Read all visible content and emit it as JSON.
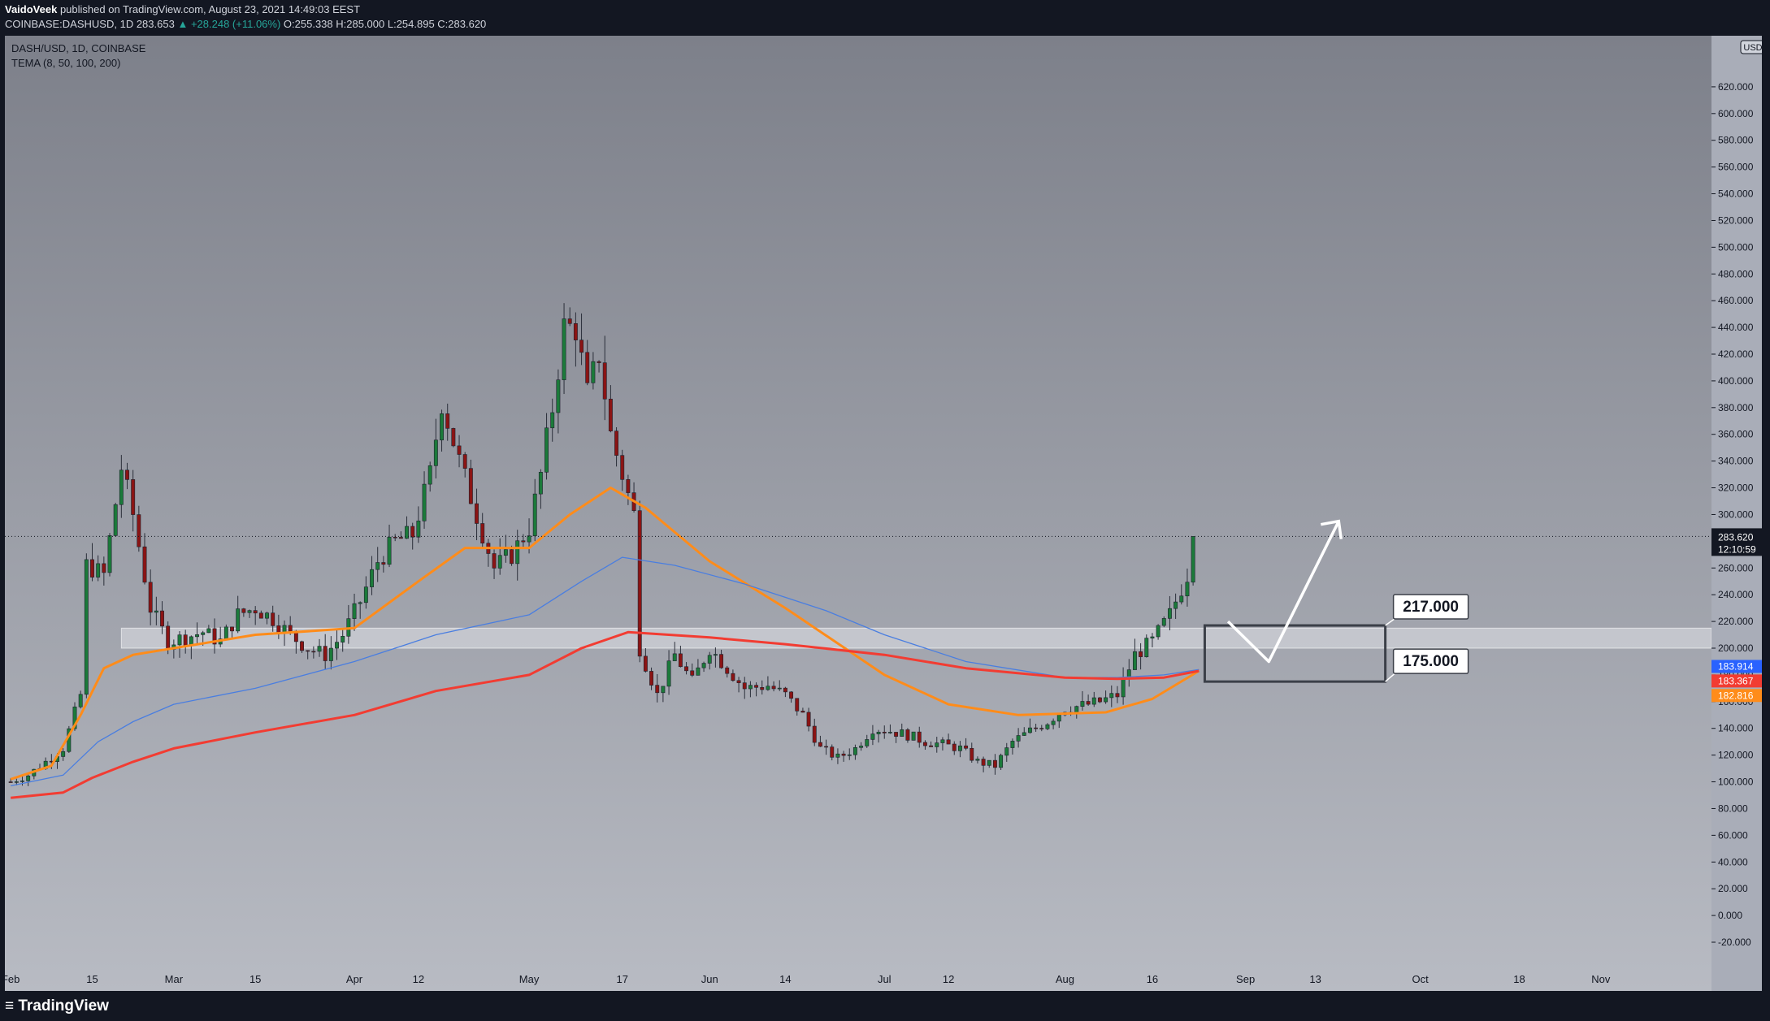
{
  "header": {
    "author": "VaidoVeek",
    "published": "published on TradingView.com, August 23, 2021 14:49:03 EEST",
    "symbol": "COINBASE:DASHUSD, 1D",
    "last": "283.653",
    "change": "+28.248 (+11.06%)",
    "ohlc": "O:255.338 H:285.000 L:254.895 C:283.620"
  },
  "legend": {
    "symbol": "DASH/USD, 1D, COINBASE",
    "indicator": "TEMA (8, 50, 100, 200)"
  },
  "footer": {
    "brand": "TradingView"
  },
  "colors": {
    "up": "#1b7a3a",
    "down": "#8b1414",
    "ma_orange": "#ff8c1a",
    "ma_red": "#f23c32",
    "ma_blue": "#4a7ee0",
    "accent_white": "#ffffff",
    "zone": "#e0e2e8"
  },
  "chart_data": {
    "type": "candlestick",
    "title": "DASH/USD, 1D, COINBASE",
    "ylim": [
      -20,
      640
    ],
    "y_ticks": [
      "-20.000",
      "0.000",
      "20.000",
      "40.000",
      "60.000",
      "80.000",
      "100.000",
      "120.000",
      "140.000",
      "160.000",
      "180.000",
      "200.000",
      "220.000",
      "240.000",
      "260.000",
      "280.000",
      "300.000",
      "320.000",
      "340.000",
      "360.000",
      "380.000",
      "400.000",
      "420.000",
      "440.000",
      "460.000",
      "480.000",
      "500.000",
      "520.000",
      "540.000",
      "560.000",
      "580.000",
      "600.000",
      "620.000"
    ],
    "x_ticks": [
      {
        "label": "Feb",
        "date": "2021-02-01"
      },
      {
        "label": "15",
        "date": "2021-02-15"
      },
      {
        "label": "Mar",
        "date": "2021-03-01"
      },
      {
        "label": "15",
        "date": "2021-03-15"
      },
      {
        "label": "Apr",
        "date": "2021-04-01"
      },
      {
        "label": "12",
        "date": "2021-04-12"
      },
      {
        "label": "May",
        "date": "2021-05-01"
      },
      {
        "label": "17",
        "date": "2021-05-17"
      },
      {
        "label": "Jun",
        "date": "2021-06-01"
      },
      {
        "label": "14",
        "date": "2021-06-14"
      },
      {
        "label": "Jul",
        "date": "2021-07-01"
      },
      {
        "label": "12",
        "date": "2021-07-12"
      },
      {
        "label": "Aug",
        "date": "2021-08-01"
      },
      {
        "label": "16",
        "date": "2021-08-16"
      },
      {
        "label": "Sep",
        "date": "2021-09-01"
      },
      {
        "label": "13",
        "date": "2021-09-13"
      },
      {
        "label": "Oct",
        "date": "2021-10-01"
      },
      {
        "label": "18",
        "date": "2021-10-18"
      },
      {
        "label": "Nov",
        "date": "2021-11-01"
      }
    ],
    "x_range": [
      "2021-01-31",
      "2021-11-20"
    ],
    "last_price": {
      "value": 283.62,
      "label": "283.620",
      "countdown": "12:10:59"
    },
    "ma_labels": [
      {
        "value": 183.914,
        "label": "183.914",
        "color": "#2962ff"
      },
      {
        "value": 183.367,
        "label": "183.367",
        "color": "#f23c32"
      },
      {
        "value": 182.816,
        "label": "182.816",
        "color": "#ff8c1a"
      }
    ],
    "currency_badge": "USD",
    "support_zone": {
      "from": 200,
      "to": 215,
      "start_date": "2021-02-20"
    },
    "target_box": {
      "top": 217,
      "bottom": 175,
      "start_date": "2021-08-25",
      "end_date": "2021-09-25",
      "top_label": "217.000",
      "bottom_label": "175.000"
    },
    "projection_path": [
      {
        "date": "2021-08-29",
        "value": 220
      },
      {
        "date": "2021-09-05",
        "value": 190
      },
      {
        "date": "2021-09-17",
        "value": 295
      }
    ],
    "anchors": [
      [
        "2021-02-01",
        100
      ],
      [
        "2021-02-04",
        105
      ],
      [
        "2021-02-07",
        115
      ],
      [
        "2021-02-10",
        125
      ],
      [
        "2021-02-13",
        165
      ],
      [
        "2021-02-14",
        262
      ],
      [
        "2021-02-17",
        255
      ],
      [
        "2021-02-20",
        335
      ],
      [
        "2021-02-22",
        300
      ],
      [
        "2021-02-25",
        230
      ],
      [
        "2021-02-28",
        205
      ],
      [
        "2021-03-03",
        208
      ],
      [
        "2021-03-06",
        212
      ],
      [
        "2021-03-09",
        205
      ],
      [
        "2021-03-12",
        225
      ],
      [
        "2021-03-15",
        230
      ],
      [
        "2021-03-18",
        222
      ],
      [
        "2021-03-21",
        210
      ],
      [
        "2021-03-24",
        200
      ],
      [
        "2021-03-27",
        195
      ],
      [
        "2021-03-30",
        210
      ],
      [
        "2021-04-02",
        235
      ],
      [
        "2021-04-05",
        265
      ],
      [
        "2021-04-08",
        280
      ],
      [
        "2021-04-11",
        285
      ],
      [
        "2021-04-14",
        330
      ],
      [
        "2021-04-16",
        385
      ],
      [
        "2021-04-19",
        340
      ],
      [
        "2021-04-22",
        300
      ],
      [
        "2021-04-25",
        260
      ],
      [
        "2021-04-28",
        270
      ],
      [
        "2021-05-01",
        290
      ],
      [
        "2021-05-03",
        330
      ],
      [
        "2021-05-05",
        380
      ],
      [
        "2021-05-07",
        440
      ],
      [
        "2021-05-09",
        440
      ],
      [
        "2021-05-11",
        390
      ],
      [
        "2021-05-13",
        420
      ],
      [
        "2021-05-15",
        360
      ],
      [
        "2021-05-17",
        330
      ],
      [
        "2021-05-19",
        300
      ],
      [
        "2021-05-20",
        200
      ],
      [
        "2021-05-23",
        165
      ],
      [
        "2021-05-26",
        195
      ],
      [
        "2021-05-29",
        175
      ],
      [
        "2021-06-01",
        200
      ],
      [
        "2021-06-04",
        185
      ],
      [
        "2021-06-07",
        170
      ],
      [
        "2021-06-11",
        172
      ],
      [
        "2021-06-14",
        165
      ],
      [
        "2021-06-17",
        150
      ],
      [
        "2021-06-20",
        125
      ],
      [
        "2021-06-23",
        118
      ],
      [
        "2021-06-26",
        125
      ],
      [
        "2021-06-29",
        140
      ],
      [
        "2021-07-02",
        138
      ],
      [
        "2021-07-05",
        135
      ],
      [
        "2021-07-08",
        130
      ],
      [
        "2021-07-11",
        128
      ],
      [
        "2021-07-14",
        125
      ],
      [
        "2021-07-17",
        115
      ],
      [
        "2021-07-20",
        112
      ],
      [
        "2021-07-23",
        130
      ],
      [
        "2021-07-26",
        138
      ],
      [
        "2021-07-29",
        145
      ],
      [
        "2021-08-01",
        155
      ],
      [
        "2021-08-04",
        157
      ],
      [
        "2021-08-07",
        160
      ],
      [
        "2021-08-10",
        165
      ],
      [
        "2021-08-13",
        195
      ],
      [
        "2021-08-16",
        205
      ],
      [
        "2021-08-19",
        225
      ],
      [
        "2021-08-21",
        245
      ],
      [
        "2021-08-22",
        255
      ],
      [
        "2021-08-23",
        283.62
      ]
    ],
    "series": [
      {
        "name": "TEMA 1",
        "color": "#ff8c1a",
        "points": [
          [
            "2021-02-01",
            102
          ],
          [
            "2021-02-08",
            112
          ],
          [
            "2021-02-13",
            150
          ],
          [
            "2021-02-17",
            185
          ],
          [
            "2021-02-22",
            195
          ],
          [
            "2021-03-01",
            200
          ],
          [
            "2021-03-15",
            210
          ],
          [
            "2021-04-01",
            215
          ],
          [
            "2021-04-12",
            250
          ],
          [
            "2021-04-20",
            275
          ],
          [
            "2021-05-01",
            275
          ],
          [
            "2021-05-08",
            300
          ],
          [
            "2021-05-15",
            320
          ],
          [
            "2021-05-21",
            305
          ],
          [
            "2021-06-01",
            265
          ],
          [
            "2021-06-14",
            230
          ],
          [
            "2021-07-01",
            180
          ],
          [
            "2021-07-12",
            158
          ],
          [
            "2021-07-24",
            150
          ],
          [
            "2021-08-08",
            152
          ],
          [
            "2021-08-16",
            162
          ],
          [
            "2021-08-24",
            183
          ]
        ]
      },
      {
        "name": "TEMA 2",
        "color": "#4a7ee0",
        "points": [
          [
            "2021-02-01",
            97
          ],
          [
            "2021-02-10",
            105
          ],
          [
            "2021-02-16",
            130
          ],
          [
            "2021-02-22",
            145
          ],
          [
            "2021-03-01",
            158
          ],
          [
            "2021-03-15",
            170
          ],
          [
            "2021-04-01",
            190
          ],
          [
            "2021-04-15",
            210
          ],
          [
            "2021-05-01",
            225
          ],
          [
            "2021-05-10",
            250
          ],
          [
            "2021-05-17",
            268
          ],
          [
            "2021-05-26",
            262
          ],
          [
            "2021-06-07",
            248
          ],
          [
            "2021-06-21",
            228
          ],
          [
            "2021-07-01",
            210
          ],
          [
            "2021-07-15",
            190
          ],
          [
            "2021-08-01",
            178
          ],
          [
            "2021-08-10",
            178
          ],
          [
            "2021-08-18",
            180
          ],
          [
            "2021-08-24",
            184
          ]
        ]
      },
      {
        "name": "TEMA 3",
        "color": "#f23c32",
        "points": [
          [
            "2021-02-01",
            88
          ],
          [
            "2021-02-10",
            92
          ],
          [
            "2021-02-15",
            103
          ],
          [
            "2021-02-22",
            115
          ],
          [
            "2021-03-01",
            125
          ],
          [
            "2021-03-15",
            137
          ],
          [
            "2021-04-01",
            150
          ],
          [
            "2021-04-15",
            168
          ],
          [
            "2021-05-01",
            180
          ],
          [
            "2021-05-10",
            200
          ],
          [
            "2021-05-18",
            212
          ],
          [
            "2021-06-01",
            208
          ],
          [
            "2021-06-14",
            203
          ],
          [
            "2021-07-01",
            195
          ],
          [
            "2021-07-15",
            185
          ],
          [
            "2021-08-01",
            178
          ],
          [
            "2021-08-10",
            177
          ],
          [
            "2021-08-18",
            178
          ],
          [
            "2021-08-24",
            183
          ]
        ]
      }
    ]
  }
}
